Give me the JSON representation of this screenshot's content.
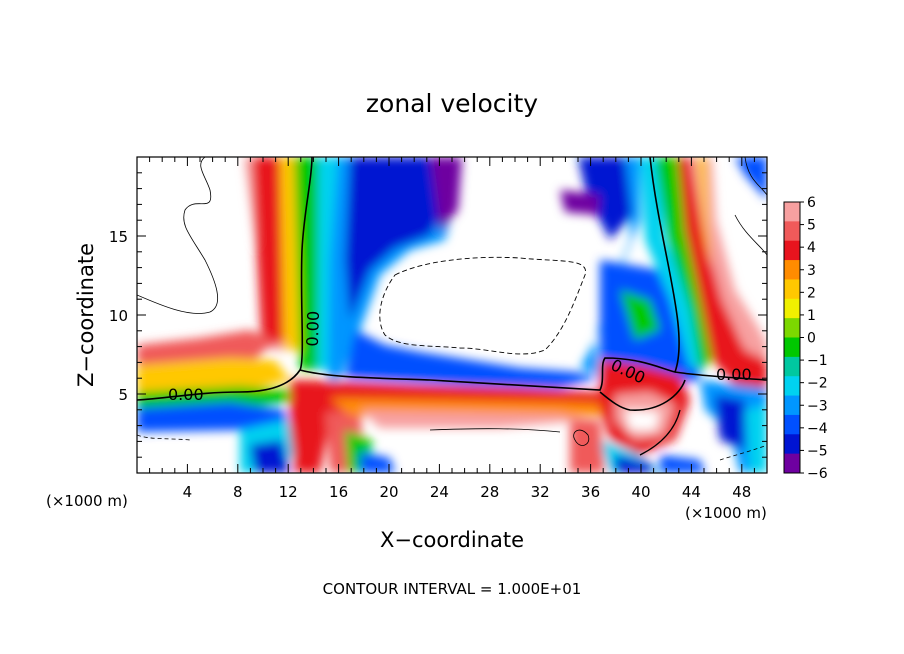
{
  "chart_data": {
    "type": "heatmap",
    "title": "zonal velocity",
    "xlabel": "X−coordinate",
    "ylabel": "Z−coordinate",
    "x_unit_left": "(×1000 m)",
    "x_unit_right": "(×1000 m)",
    "xlim": [
      0,
      50
    ],
    "ylim": [
      0,
      20
    ],
    "x_ticks": [
      4,
      8,
      12,
      16,
      20,
      24,
      28,
      32,
      36,
      40,
      44,
      48
    ],
    "y_ticks": [
      5,
      10,
      15
    ],
    "colorbar": {
      "levels": [
        6,
        5,
        4,
        3,
        2,
        1,
        0,
        -1,
        -2,
        -3,
        -4,
        -5,
        -6
      ],
      "labels": [
        "6",
        "5",
        "4",
        "3",
        "2",
        "1",
        "0",
        "−1",
        "−2",
        "−3",
        "−4",
        "−5",
        "−6"
      ],
      "colors": [
        "#f7a0a0",
        "#f05a5a",
        "#e8141e",
        "#ff8c00",
        "#ffc800",
        "#f0f000",
        "#7cd800",
        "#00c800",
        "#00c8a0",
        "#00d2f0",
        "#0096ff",
        "#0050ff",
        "#0014d2",
        "#6e00a0"
      ]
    },
    "contour_labels": [
      {
        "text": "0.00",
        "x": 5.8,
        "z": 5.0
      },
      {
        "text": "0.00",
        "x": 13.0,
        "z": 8.5
      },
      {
        "text": "0.00",
        "x": 38.5,
        "z": 6.0
      },
      {
        "text": "0.00",
        "x": 46.0,
        "z": 6.3
      }
    ],
    "footnote": "CONTOUR INTERVAL = 1.000E+01"
  }
}
